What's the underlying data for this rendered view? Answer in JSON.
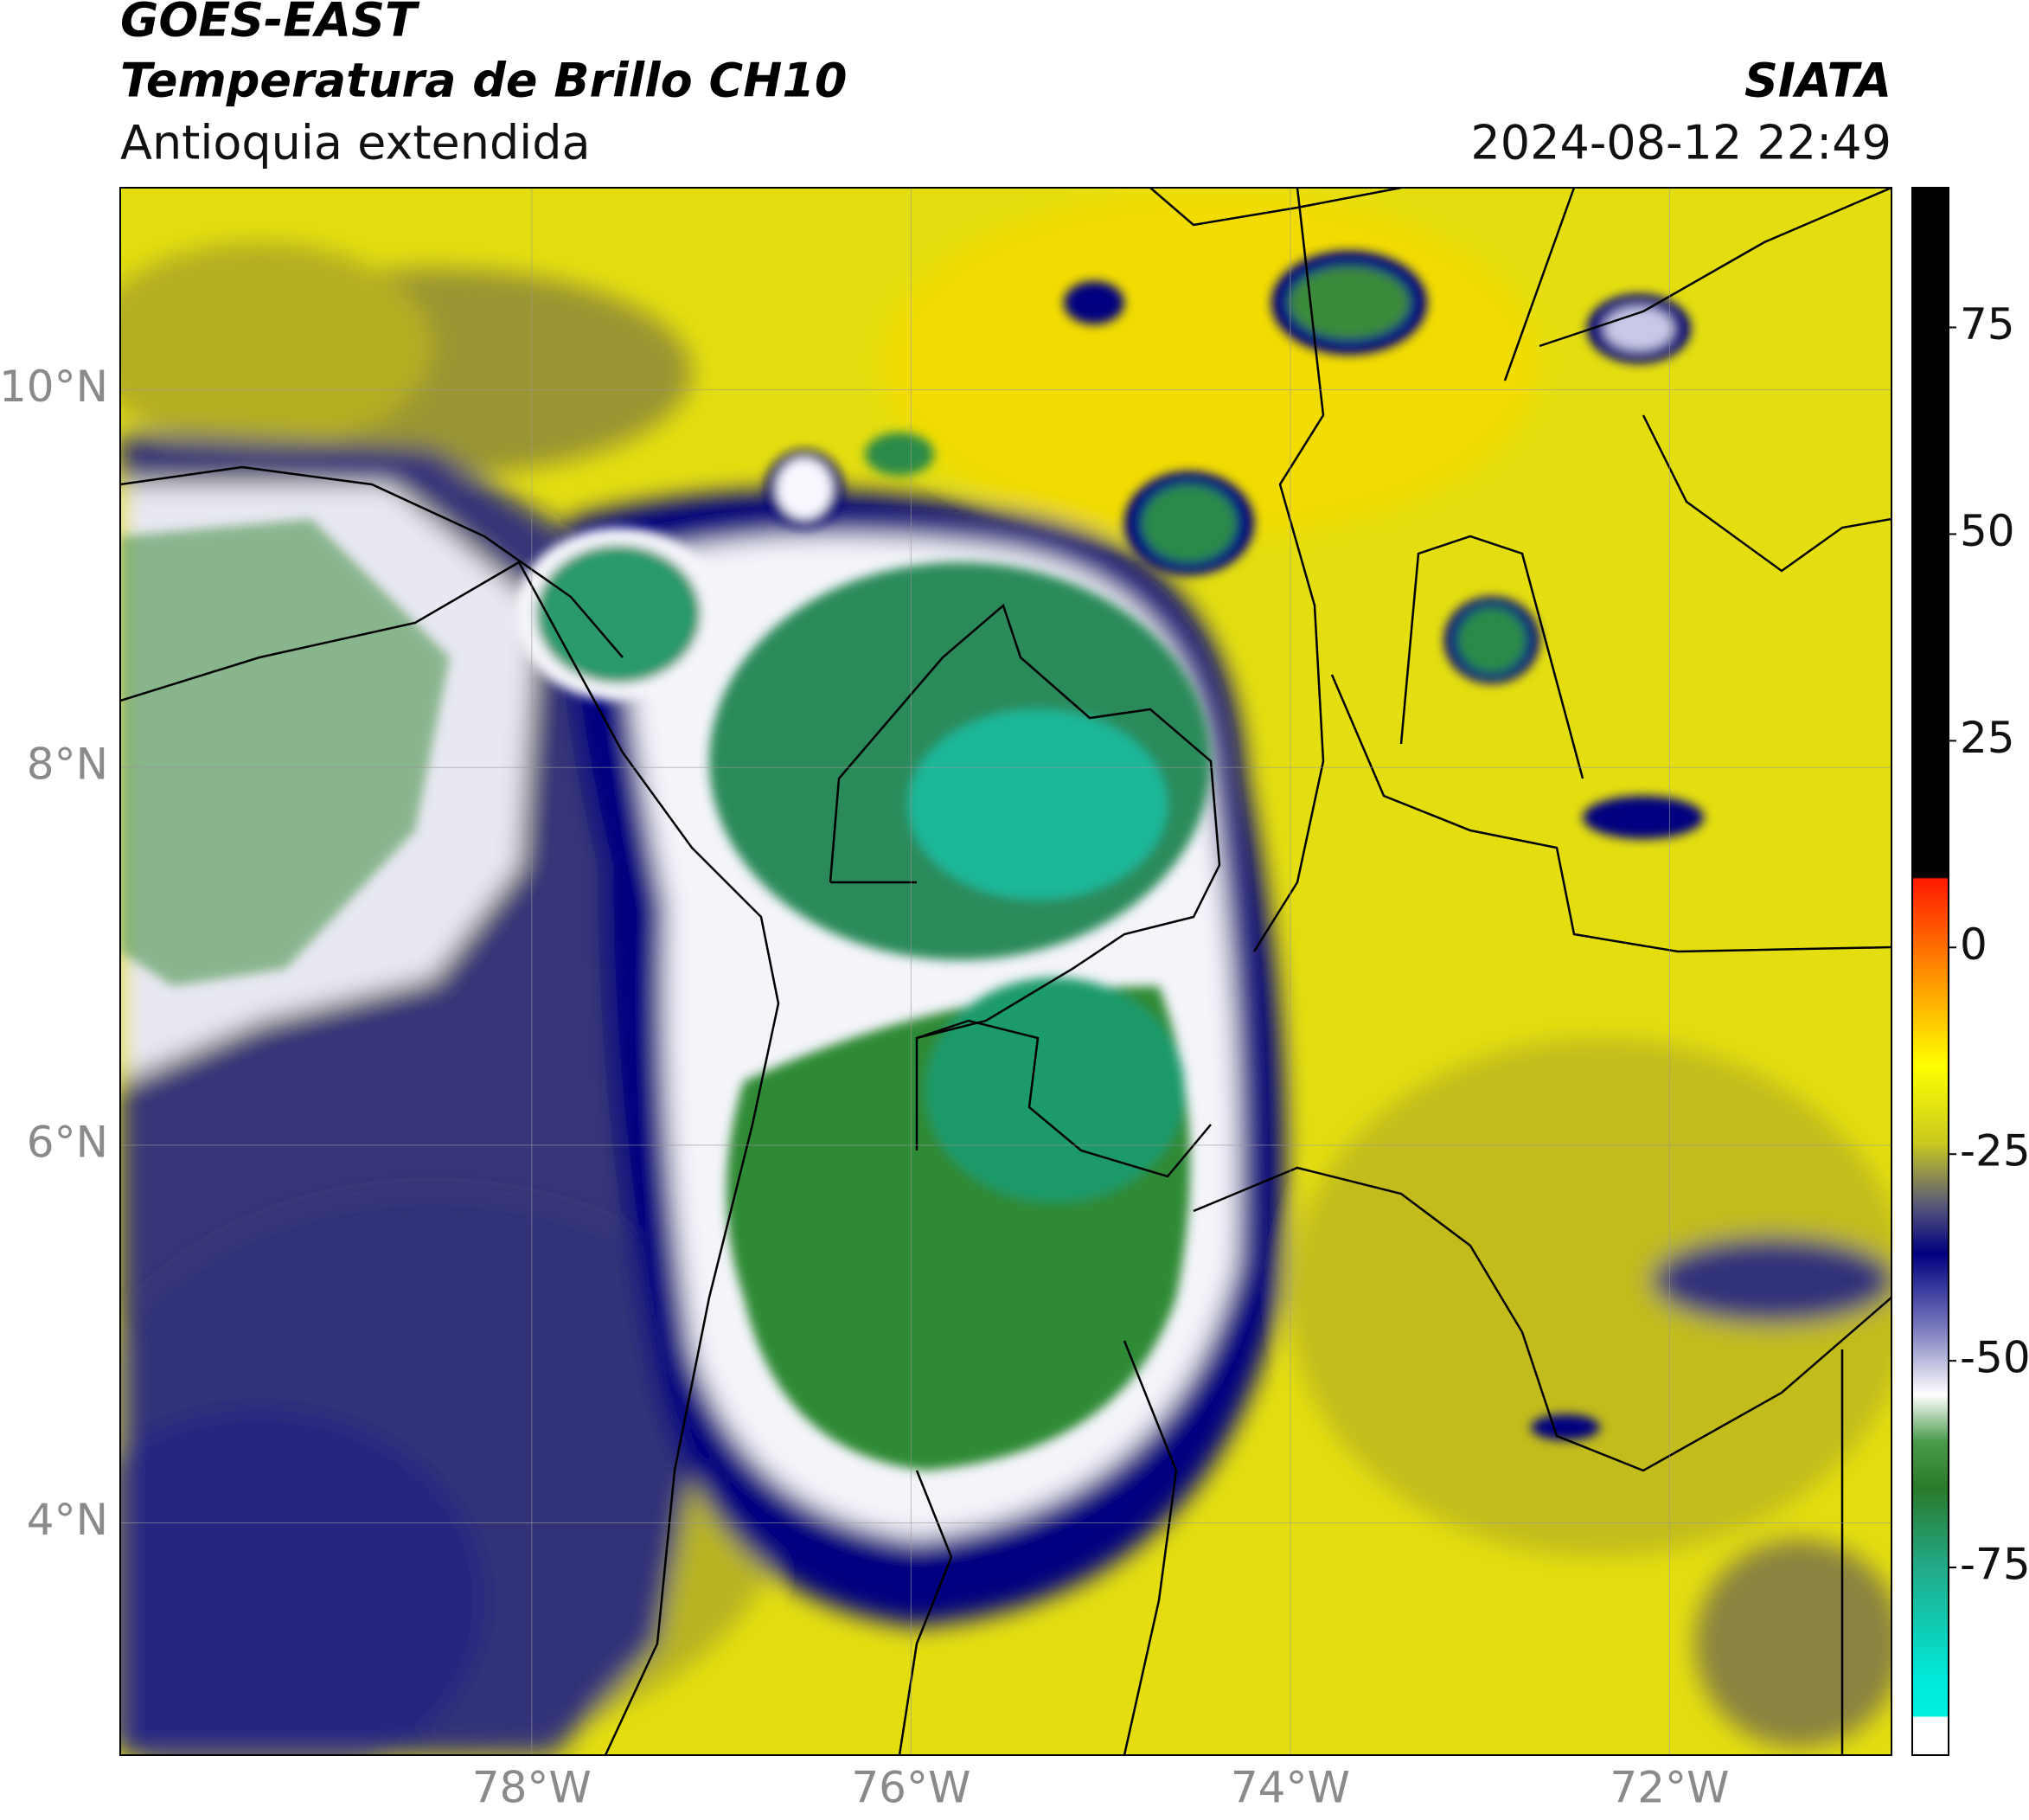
{
  "header": {
    "satellite": "GOES-EAST",
    "product": "Temperatura de Brillo CH10",
    "region": "Antioquia extendida",
    "source": "SIATA",
    "datetime": "2024-08-12 22:49"
  },
  "map": {
    "lon_range": [
      -80.17,
      -70.83
    ],
    "lat_range": [
      2.77,
      11.07
    ],
    "lat_ticks": [
      {
        "value": 10,
        "label": "10°N"
      },
      {
        "value": 8,
        "label": "8°N"
      },
      {
        "value": 6,
        "label": "6°N"
      },
      {
        "value": 4,
        "label": "4°N"
      }
    ],
    "lon_ticks": [
      {
        "value": -78,
        "label": "78°W"
      },
      {
        "value": -76,
        "label": "76°W"
      },
      {
        "value": -74,
        "label": "74°W"
      },
      {
        "value": -72,
        "label": "72°W"
      }
    ]
  },
  "colorbar": {
    "range": [
      -97.7,
      91.9
    ],
    "ticks": [
      75,
      50,
      25,
      0,
      -25,
      -50,
      -75
    ]
  }
}
